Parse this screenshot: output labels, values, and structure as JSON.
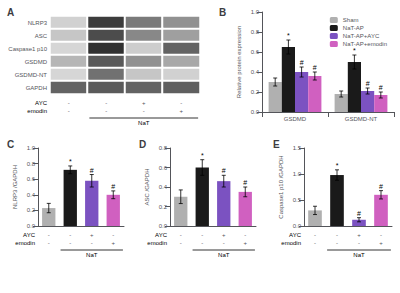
{
  "chart_data": [
    {
      "type": "heatmap",
      "title": "A",
      "categories": [
        null,
        null,
        null,
        null
      ],
      "y_categories": [
        "NLRP3",
        "ASC",
        "Caspase1 p10",
        "GSDMD",
        "GSDMD-NT",
        "GAPDH"
      ],
      "cells": [
        [
          0.2,
          0.85,
          0.58,
          0.48
        ],
        [
          0.25,
          0.78,
          0.52,
          0.42
        ],
        [
          0.18,
          0.9,
          0.22,
          0.68
        ],
        [
          0.32,
          0.72,
          0.48,
          0.38
        ],
        [
          0.18,
          0.62,
          0.25,
          0.2
        ],
        [
          0.68,
          0.72,
          0.68,
          0.7
        ]
      ],
      "rows": [
        {
          "label": "AYC",
          "values": [
            "-",
            "-",
            "+",
            "-"
          ]
        },
        {
          "label": "emodin",
          "values": [
            "-",
            "-",
            "-",
            "+"
          ]
        }
      ],
      "bracket": {
        "text": "NaT",
        "from": 1,
        "to": 3
      }
    },
    {
      "type": "bar",
      "title": "B",
      "categories": [
        "GSDMD",
        "GSDMD-NT"
      ],
      "series": [
        {
          "name": "Sham",
          "color": "#b0b0b0",
          "values": [
            0.3,
            0.18
          ],
          "errors": [
            0.04,
            0.03
          ]
        },
        {
          "name": "NaT-AP",
          "color": "#1a1a1a",
          "values": [
            0.65,
            0.5
          ],
          "errors": [
            0.07,
            0.07
          ]
        },
        {
          "name": "NaT-AP+AYC",
          "color": "#7b52c1",
          "values": [
            0.4,
            0.21
          ],
          "errors": [
            0.05,
            0.03
          ]
        },
        {
          "name": "NaT-AP+emodin",
          "color": "#d060c0",
          "values": [
            0.36,
            0.17
          ],
          "errors": [
            0.04,
            0.03
          ]
        }
      ],
      "ylabel": "Relative protein expression",
      "ylim": [
        0,
        1.0
      ],
      "yticks": [
        {
          "value": 0.0,
          "label": "0.0"
        },
        0.2,
        0.4,
        0.6,
        0.8,
        {
          "value": 1.0,
          "label": "1.0"
        }
      ],
      "legend": "upper right",
      "annotations": [
        {
          "text": "*",
          "series": "NaT-AP"
        },
        {
          "text": "#",
          "series": "NaT-AP+AYC"
        },
        {
          "text": "#",
          "series": "NaT-AP+emodin"
        }
      ]
    },
    {
      "type": "bar",
      "title": "C",
      "categories": [
        null,
        null,
        null,
        null
      ],
      "values": [
        0.23,
        0.72,
        0.58,
        0.4
      ],
      "errors": [
        0.06,
        0.05,
        0.08,
        0.05
      ],
      "colors": [
        "#b0b0b0",
        "#1a1a1a",
        "#7b52c1",
        "#d060c0"
      ],
      "ylabel": "NLRP3 /GAPDH",
      "ylim": [
        0,
        1.0
      ],
      "yticks": [
        {
          "value": 0.0,
          "label": "0.0"
        },
        0.2,
        0.4,
        0.6,
        0.8,
        {
          "value": 1.0,
          "label": "1.0"
        }
      ],
      "rows": [
        {
          "label": "AYC",
          "values": [
            "-",
            "-",
            "+",
            "-"
          ]
        },
        {
          "label": "emodin",
          "values": [
            "-",
            "-",
            "-",
            "+"
          ]
        }
      ],
      "bracket": {
        "text": "NaT",
        "from": 1,
        "to": 3
      },
      "annotations": [
        {
          "text": "*",
          "index": 1
        },
        {
          "text": "#",
          "index": 2
        },
        {
          "text": "#",
          "index": 3
        }
      ]
    },
    {
      "type": "bar",
      "title": "D",
      "categories": [
        null,
        null,
        null,
        null
      ],
      "values": [
        0.3,
        0.6,
        0.46,
        0.35
      ],
      "errors": [
        0.07,
        0.08,
        0.06,
        0.05
      ],
      "colors": [
        "#b0b0b0",
        "#1a1a1a",
        "#7b52c1",
        "#d060c0"
      ],
      "ylabel": "ASC /GAPDH",
      "ylim": [
        0,
        0.8
      ],
      "yticks": [
        {
          "value": 0.0,
          "label": "0.0"
        },
        0.2,
        0.4,
        0.6,
        0.8
      ],
      "rows": [
        {
          "label": "AYC",
          "values": [
            "-",
            "-",
            "+",
            "-"
          ]
        },
        {
          "label": "emodin",
          "values": [
            "-",
            "-",
            "-",
            "+"
          ]
        }
      ],
      "bracket": {
        "text": "NaT",
        "from": 1,
        "to": 3
      },
      "annotations": [
        {
          "text": "*",
          "index": 1
        },
        {
          "text": "#",
          "index": 2
        },
        {
          "text": "#",
          "index": 3
        }
      ]
    },
    {
      "type": "bar",
      "title": "E",
      "categories": [
        null,
        null,
        null,
        null
      ],
      "values": [
        0.3,
        0.98,
        0.12,
        0.6
      ],
      "errors": [
        0.08,
        0.1,
        0.04,
        0.08
      ],
      "colors": [
        "#b0b0b0",
        "#1a1a1a",
        "#7b52c1",
        "#d060c0"
      ],
      "ylabel": "Caspase1 p10 /GAPDH",
      "ylim": [
        0,
        1.5
      ],
      "yticks": [
        {
          "value": 0.0,
          "label": "0.0"
        },
        0.5,
        {
          "value": 1.0,
          "label": "1.0"
        },
        1.5
      ],
      "rows": [
        {
          "label": "AYC",
          "values": [
            "-",
            "-",
            "+",
            "-"
          ]
        },
        {
          "label": "emodin",
          "values": [
            "-",
            "-",
            "-",
            "+"
          ]
        }
      ],
      "bracket": {
        "text": "NaT",
        "from": 1,
        "to": 3
      },
      "annotations": [
        {
          "text": "*",
          "index": 1
        },
        {
          "text": "#",
          "index": 2
        },
        {
          "text": "#",
          "index": 3
        }
      ]
    }
  ]
}
